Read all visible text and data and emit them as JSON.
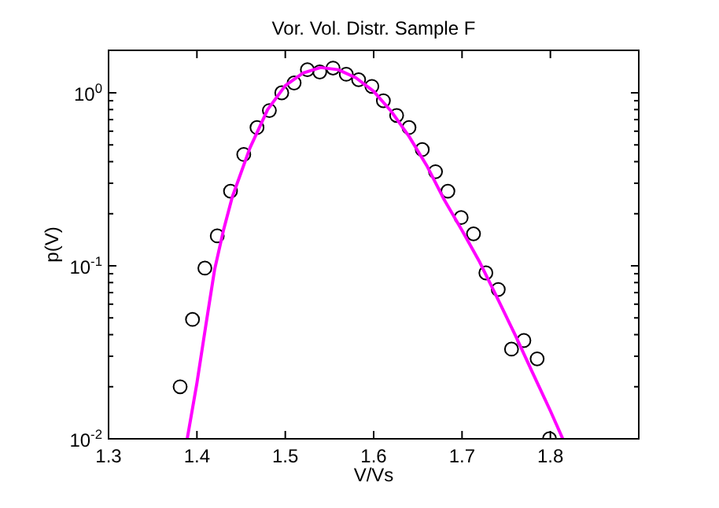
{
  "chart_data": {
    "type": "scatter",
    "title": "Vor. Vol. Distr. Sample F",
    "xlabel": "V/Vs",
    "ylabel": "p(V)",
    "log": "y",
    "grid": false,
    "xlim": [
      1.3,
      1.9
    ],
    "xticks": [
      1.3,
      1.4,
      1.5,
      1.6,
      1.7,
      1.8,
      {
        "value": 1.9,
        "label": null
      }
    ],
    "ylim": [
      0.01,
      1.76
    ],
    "yticks": [
      {
        "value": 0.01,
        "label": "10$^{-2}$"
      },
      {
        "value": 0.1,
        "label": "10$^{-1}$"
      },
      {
        "value": 1,
        "label": "10$^{0}$"
      }
    ],
    "series": [
      {
        "marker": "circle",
        "color": "#000000",
        "x": [
          1.381,
          1.395,
          1.409,
          1.423,
          1.438,
          1.453,
          1.468,
          1.482,
          1.496,
          1.51,
          1.525,
          1.539,
          1.554,
          1.569,
          1.583,
          1.598,
          1.611,
          1.626,
          1.64,
          1.655,
          1.67,
          1.684,
          1.699,
          1.713,
          1.727,
          1.741,
          1.756,
          1.77,
          1.785,
          1.799
        ],
        "values": [
          0.02,
          0.049,
          0.097,
          0.149,
          0.27,
          0.44,
          0.63,
          0.79,
          1.0,
          1.14,
          1.36,
          1.32,
          1.39,
          1.28,
          1.19,
          1.09,
          0.9,
          0.74,
          0.63,
          0.47,
          0.35,
          0.27,
          0.19,
          0.153,
          0.091,
          0.073,
          0.033,
          0.037,
          0.029,
          0.01
        ]
      },
      {
        "type": "line",
        "line_style": "solid",
        "color": "#ff00ff",
        "x": [
          1.389,
          1.4,
          1.41,
          1.42,
          1.43,
          1.44,
          1.46,
          1.48,
          1.5,
          1.52,
          1.54,
          1.56,
          1.58,
          1.6,
          1.62,
          1.64,
          1.66,
          1.68,
          1.7,
          1.72,
          1.74,
          1.76,
          1.78,
          1.8,
          1.814
        ],
        "values": [
          0.01,
          0.021,
          0.045,
          0.095,
          0.16,
          0.25,
          0.48,
          0.8,
          1.1,
          1.3,
          1.4,
          1.36,
          1.22,
          1.02,
          0.78,
          0.56,
          0.38,
          0.24,
          0.16,
          0.105,
          0.065,
          0.04,
          0.024,
          0.0145,
          0.01
        ]
      }
    ]
  }
}
